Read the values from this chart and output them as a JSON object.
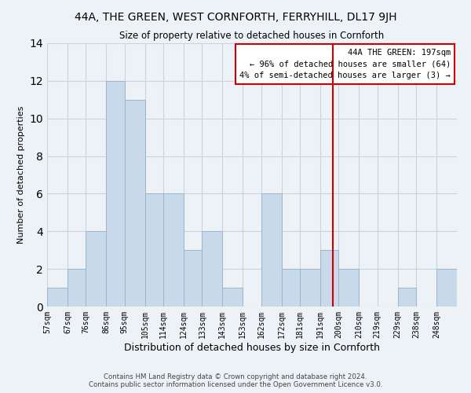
{
  "title": "44A, THE GREEN, WEST CORNFORTH, FERRYHILL, DL17 9JH",
  "subtitle": "Size of property relative to detached houses in Cornforth",
  "xlabel": "Distribution of detached houses by size in Cornforth",
  "ylabel": "Number of detached properties",
  "footnote1": "Contains HM Land Registry data © Crown copyright and database right 2024.",
  "footnote2": "Contains public sector information licensed under the Open Government Licence v3.0.",
  "bin_labels": [
    "57sqm",
    "67sqm",
    "76sqm",
    "86sqm",
    "95sqm",
    "105sqm",
    "114sqm",
    "124sqm",
    "133sqm",
    "143sqm",
    "153sqm",
    "162sqm",
    "172sqm",
    "181sqm",
    "191sqm",
    "200sqm",
    "210sqm",
    "219sqm",
    "229sqm",
    "238sqm",
    "248sqm"
  ],
  "bar_heights": [
    1,
    2,
    4,
    12,
    11,
    6,
    6,
    3,
    4,
    1,
    0,
    6,
    2,
    2,
    3,
    2,
    0,
    0,
    1,
    0,
    2
  ],
  "bar_color": "#c8d9ea",
  "bar_edge_color": "#9bb5cc",
  "grid_color": "#c8d4dc",
  "background_color": "#edf2f7",
  "vline_x": 197,
  "vline_color": "#cc0000",
  "annotation_line1": "44A THE GREEN: 197sqm",
  "annotation_line2": "← 96% of detached houses are smaller (64)",
  "annotation_line3": "4% of semi-detached houses are larger (3) →",
  "annotation_box_facecolor": "#ffffff",
  "annotation_box_edgecolor": "#cc0000",
  "ylim": [
    0,
    14
  ],
  "yticks": [
    0,
    2,
    4,
    6,
    8,
    10,
    12,
    14
  ],
  "bin_edges": [
    57,
    67,
    76,
    86,
    95,
    105,
    114,
    124,
    133,
    143,
    153,
    162,
    172,
    181,
    191,
    200,
    210,
    219,
    229,
    238,
    248,
    258
  ]
}
